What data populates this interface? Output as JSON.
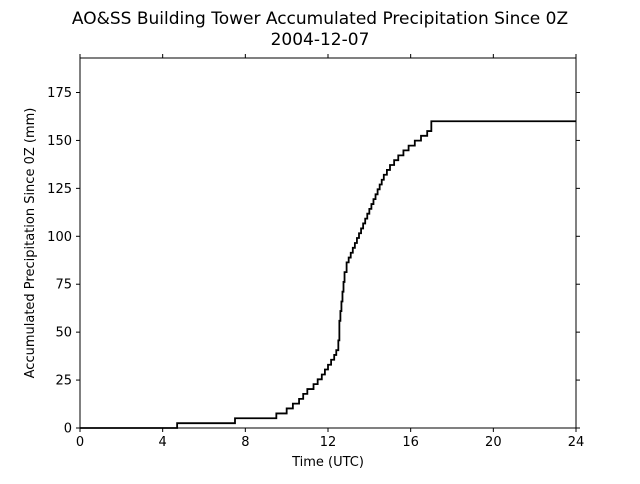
{
  "chart_data": {
    "type": "line",
    "title": "AO&SS Building Tower Accumulated Precipitation Since 0Z",
    "subtitle": "2004-12-07",
    "xlabel": "Time (UTC)",
    "ylabel": "Accumulated Precipitation Since 0Z (mm)",
    "xlim": [
      0,
      24
    ],
    "ylim": [
      0,
      193
    ],
    "xticks": [
      0,
      4,
      8,
      12,
      16,
      20,
      24
    ],
    "yticks": [
      0,
      25,
      50,
      75,
      100,
      125,
      150,
      175
    ],
    "grid": false,
    "line_color": "#000000",
    "series": [
      {
        "step": "post",
        "x": [
          0,
          4.7,
          7.5,
          9.5,
          10.0,
          10.3,
          10.6,
          10.8,
          11.0,
          11.3,
          11.5,
          11.7,
          11.85,
          12.0,
          12.15,
          12.3,
          12.4,
          12.5,
          12.55,
          12.6,
          12.65,
          12.7,
          12.75,
          12.8,
          12.9,
          13.0,
          13.1,
          13.2,
          13.3,
          13.4,
          13.5,
          13.6,
          13.7,
          13.8,
          13.9,
          14.0,
          14.1,
          14.2,
          14.3,
          14.4,
          14.5,
          14.6,
          14.7,
          14.85,
          15.0,
          15.2,
          15.4,
          15.65,
          15.9,
          16.2,
          16.5,
          16.8,
          17.0,
          24.0
        ],
        "y": [
          0,
          2.5,
          5.1,
          7.6,
          10.2,
          12.7,
          15.2,
          17.8,
          20.3,
          22.9,
          25.4,
          27.9,
          30.5,
          33.0,
          35.6,
          38.1,
          40.6,
          45.7,
          55.9,
          61.0,
          66.0,
          71.1,
          76.2,
          81.3,
          86.4,
          88.9,
          91.4,
          94.0,
          96.5,
          99.1,
          101.6,
          104.1,
          106.7,
          109.2,
          111.8,
          114.3,
          116.8,
          119.4,
          121.9,
          124.5,
          127.0,
          129.5,
          132.1,
          134.6,
          137.2,
          139.7,
          142.2,
          144.8,
          147.3,
          149.9,
          152.4,
          154.9,
          160.0,
          160.0
        ]
      }
    ]
  }
}
